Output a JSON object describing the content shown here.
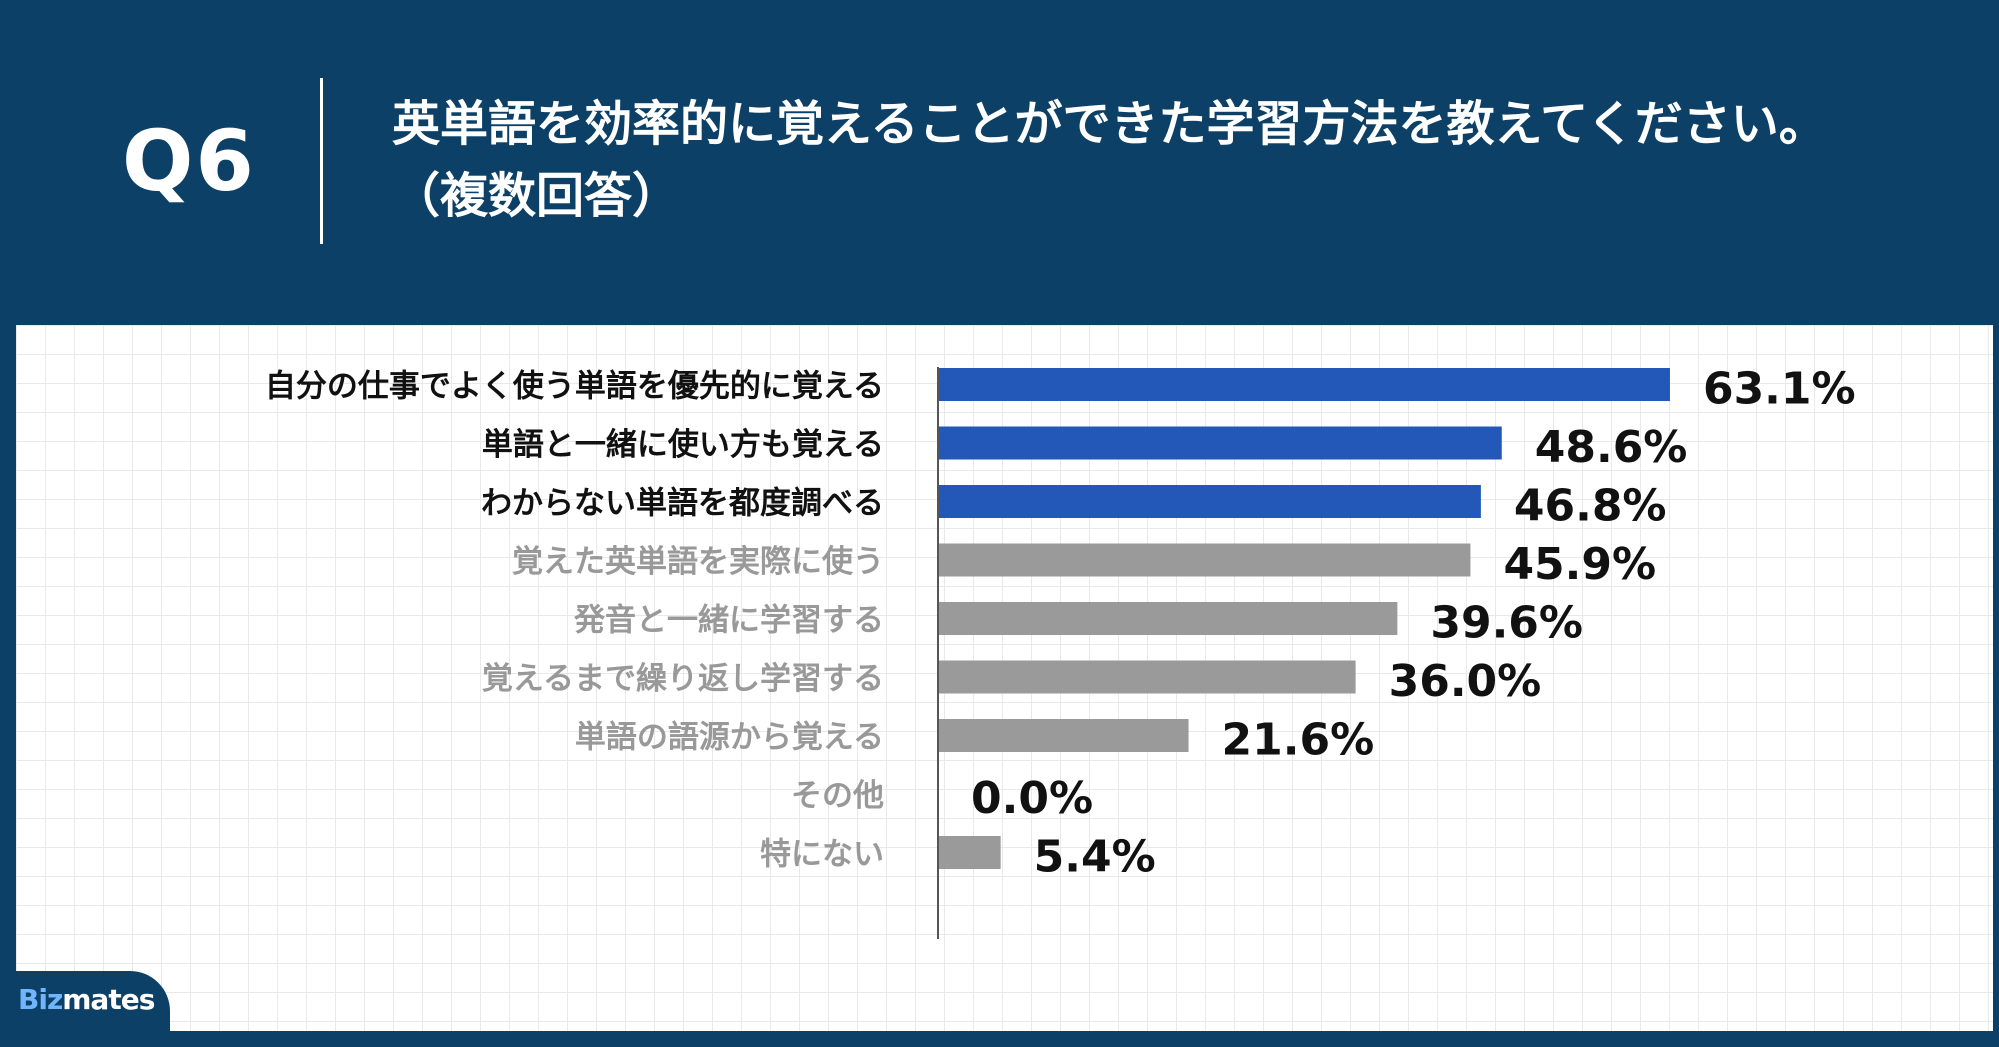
{
  "header": {
    "question_number": "Q6",
    "question_line1": "英単語を効率的に覚えることができた学習方法を教えてください。",
    "question_line2": "（複数回答）"
  },
  "brand": {
    "prefix": "Biz",
    "suffix": "mates"
  },
  "colors": {
    "background": "#0d4066",
    "highlight_bar": "#2358b8",
    "normal_bar": "#9a9a9a",
    "highlight_label": "#111111",
    "normal_label": "#999999",
    "value_label": "#111111"
  },
  "chart_data": {
    "type": "bar",
    "orientation": "horizontal",
    "categories": [
      "自分の仕事でよく使う単語を優先的に覚える",
      "単語と一緒に使い方も覚える",
      "わからない単語を都度調べる",
      "覚えた英単語を実際に使う",
      "発音と一緒に学習する",
      "覚えるまで繰り返し学習する",
      "単語の語源から覚える",
      "その他",
      "特にない"
    ],
    "values": [
      63.1,
      48.6,
      46.8,
      45.9,
      39.6,
      36.0,
      21.6,
      0.0,
      5.4
    ],
    "value_labels": [
      "63.1%",
      "48.6%",
      "46.8%",
      "45.9%",
      "39.6%",
      "36.0%",
      "21.6%",
      "0.0%",
      "5.4%"
    ],
    "highlighted": [
      true,
      true,
      true,
      false,
      false,
      false,
      false,
      false,
      false
    ],
    "xlim": [
      0,
      100
    ],
    "grid": true
  }
}
